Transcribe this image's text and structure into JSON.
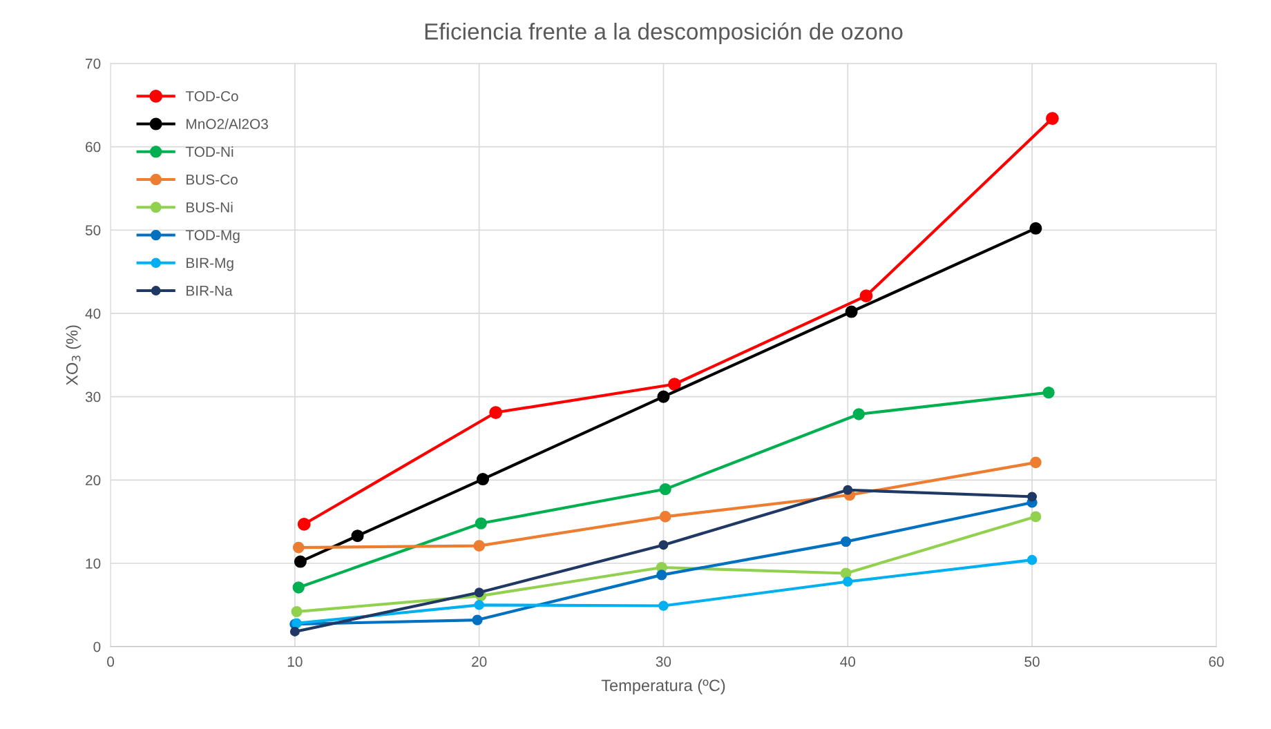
{
  "chart_data": {
    "type": "line",
    "title": "Eficiencia frente a la descomposición de ozono",
    "xlabel": "Temperatura (ºC)",
    "ylabel": "XO$_{3}$ (%)",
    "xlim": [
      0,
      60
    ],
    "xticks": [
      0,
      10,
      20,
      30,
      40,
      50,
      60
    ],
    "ylim": [
      0,
      70
    ],
    "yticks": [
      0,
      10,
      20,
      30,
      40,
      50,
      60,
      70
    ],
    "grid": true,
    "legend": "top left",
    "marker": "circle",
    "line_style": "solid",
    "series": [
      {
        "name": "TOD-Co",
        "color": "#ff0000",
        "x": [
          10.5,
          20.9,
          30.6,
          41.0,
          51.1
        ],
        "values": [
          14.7,
          28.1,
          31.5,
          42.1,
          63.4
        ]
      },
      {
        "name": "MnO2/Al2O3",
        "color": "#000000",
        "x": [
          10.3,
          13.4,
          20.2,
          30.0,
          40.2,
          50.2
        ],
        "values": [
          10.2,
          13.3,
          20.1,
          30.0,
          40.2,
          50.2
        ]
      },
      {
        "name": "TOD-Ni",
        "color": "#00b050",
        "x": [
          10.2,
          20.1,
          30.1,
          40.6,
          50.9
        ],
        "values": [
          7.1,
          14.8,
          18.9,
          27.9,
          30.5
        ]
      },
      {
        "name": "BUS-Co",
        "color": "#ed7d31",
        "x": [
          10.2,
          20.0,
          30.1,
          40.1,
          50.2
        ],
        "values": [
          11.9,
          12.1,
          15.6,
          18.2,
          22.1
        ]
      },
      {
        "name": "BUS-Ni",
        "color": "#92d050",
        "x": [
          10.1,
          20.1,
          29.9,
          39.9,
          50.2
        ],
        "values": [
          4.2,
          6.1,
          9.5,
          8.8,
          15.6
        ]
      },
      {
        "name": "TOD-Mg",
        "color": "#0070c0",
        "x": [
          10.0,
          19.9,
          29.9,
          39.9,
          50.0
        ],
        "values": [
          2.7,
          3.2,
          8.6,
          12.6,
          17.3
        ]
      },
      {
        "name": "BIR-Mg",
        "color": "#00b0f0",
        "x": [
          10.1,
          20.0,
          30.0,
          40.0,
          50.0
        ],
        "values": [
          2.8,
          5.0,
          4.9,
          7.8,
          10.4
        ]
      },
      {
        "name": "BIR-Na",
        "color": "#203864",
        "x": [
          10.0,
          20.0,
          30.0,
          40.0,
          50.0
        ],
        "values": [
          1.8,
          6.5,
          12.2,
          18.8,
          18.0
        ]
      }
    ]
  }
}
